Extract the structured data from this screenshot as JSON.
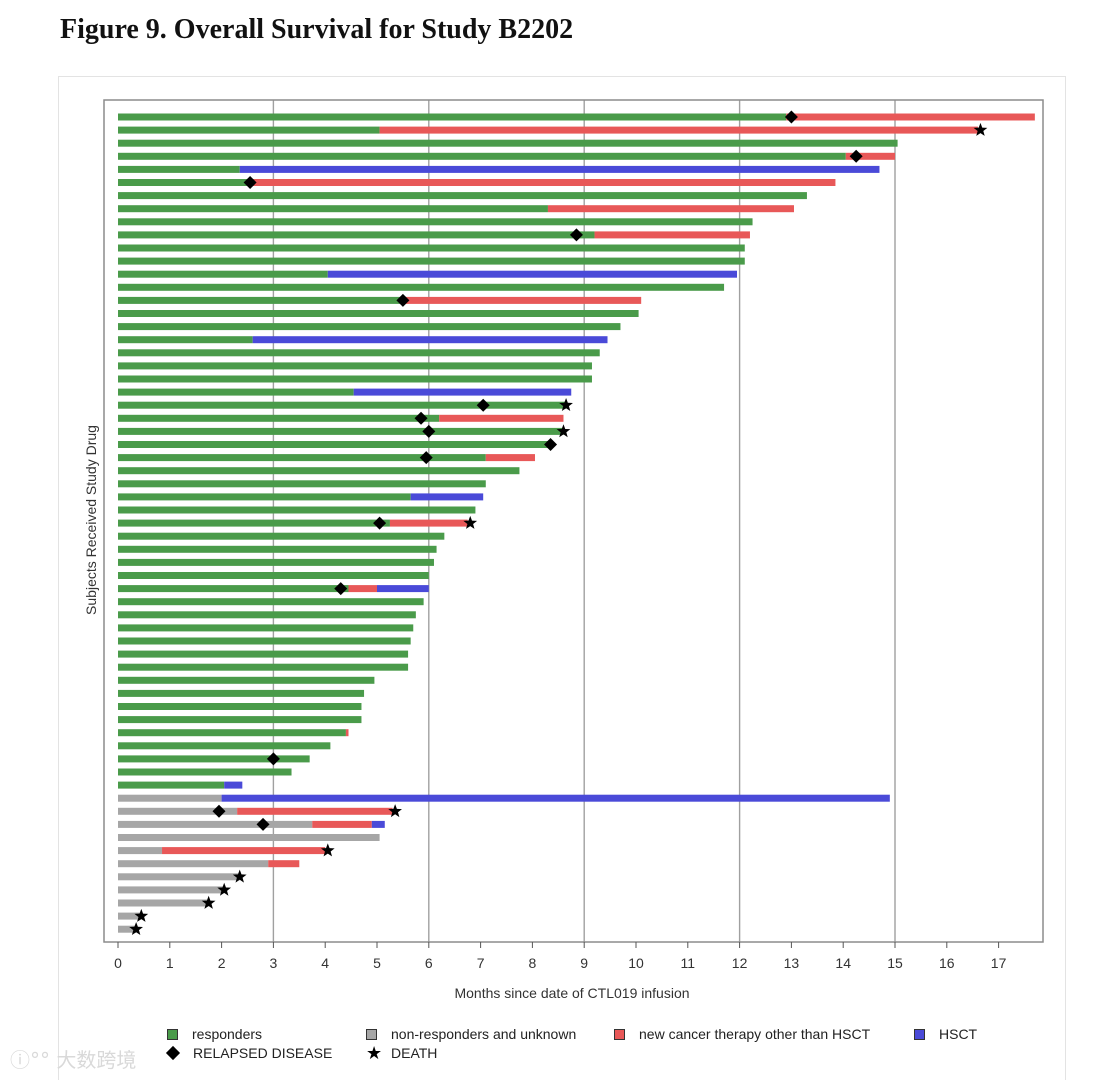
{
  "figure_title": "Figure 9. Overall Survival for Study B2202",
  "watermark": "ⓘ°° 大数跨境",
  "colors": {
    "responders": "#4a9b4a",
    "nonresponders": "#a6a6a6",
    "newtherapy": "#e85858",
    "hsct": "#4a4ad8",
    "gridline": "#a0a0a0",
    "frame": "#8c8c8c"
  },
  "chart_data": {
    "type": "bar",
    "orientation": "horizontal",
    "title": "Figure 9. Overall Survival for Study B2202",
    "xlabel": "Months since date of CTL019 infusion",
    "ylabel": "Subjects Received Study Drug",
    "xlim": [
      0,
      17.9
    ],
    "xticks": [
      0,
      1,
      2,
      3,
      4,
      5,
      6,
      7,
      8,
      9,
      10,
      11,
      12,
      13,
      14,
      15,
      16,
      17
    ],
    "vertical_reference_lines": [
      3,
      6,
      9,
      12,
      15
    ],
    "legend": {
      "placement": "bottom",
      "items": [
        {
          "label": "responders",
          "marker": "square",
          "key": "responders"
        },
        {
          "label": "non-responders and unknown",
          "marker": "square",
          "key": "nonresponders"
        },
        {
          "label": "new cancer therapy other than HSCT",
          "marker": "square",
          "key": "newtherapy"
        },
        {
          "label": "HSCT",
          "marker": "square",
          "key": "hsct"
        },
        {
          "label": "RELAPSED DISEASE",
          "marker": "diamond"
        },
        {
          "label": "DEATH",
          "marker": "star"
        }
      ]
    },
    "subjects": [
      {
        "segments": [
          [
            "responders",
            0,
            12.9
          ],
          [
            "newtherapy",
            12.9,
            17.7
          ]
        ],
        "relapse": 13.0
      },
      {
        "segments": [
          [
            "responders",
            0,
            5.05
          ],
          [
            "newtherapy",
            5.05,
            16.6
          ]
        ],
        "death": 16.65
      },
      {
        "segments": [
          [
            "responders",
            0,
            15.05
          ]
        ]
      },
      {
        "segments": [
          [
            "responders",
            0,
            14.05
          ],
          [
            "newtherapy",
            14.05,
            15.0
          ]
        ],
        "relapse": 14.25
      },
      {
        "segments": [
          [
            "responders",
            0,
            2.35
          ],
          [
            "hsct",
            2.35,
            14.7
          ]
        ]
      },
      {
        "segments": [
          [
            "responders",
            0,
            2.55
          ],
          [
            "newtherapy",
            2.55,
            13.85
          ]
        ],
        "relapse": 2.55
      },
      {
        "segments": [
          [
            "responders",
            0,
            13.3
          ]
        ]
      },
      {
        "segments": [
          [
            "responders",
            0,
            8.3
          ],
          [
            "newtherapy",
            8.3,
            13.05
          ]
        ]
      },
      {
        "segments": [
          [
            "responders",
            0,
            12.25
          ]
        ]
      },
      {
        "segments": [
          [
            "responders",
            0,
            9.2
          ],
          [
            "newtherapy",
            9.2,
            12.2
          ]
        ],
        "relapse": 8.85
      },
      {
        "segments": [
          [
            "responders",
            0,
            12.1
          ]
        ]
      },
      {
        "segments": [
          [
            "responders",
            0,
            12.1
          ]
        ]
      },
      {
        "segments": [
          [
            "responders",
            0,
            4.05
          ],
          [
            "hsct",
            4.05,
            11.95
          ]
        ]
      },
      {
        "segments": [
          [
            "responders",
            0,
            11.7
          ]
        ]
      },
      {
        "segments": [
          [
            "responders",
            0,
            5.5
          ],
          [
            "newtherapy",
            5.5,
            10.1
          ]
        ],
        "relapse": 5.5
      },
      {
        "segments": [
          [
            "responders",
            0,
            10.05
          ]
        ]
      },
      {
        "segments": [
          [
            "responders",
            0,
            9.7
          ]
        ]
      },
      {
        "segments": [
          [
            "responders",
            0,
            2.6
          ],
          [
            "hsct",
            2.6,
            9.45
          ]
        ]
      },
      {
        "segments": [
          [
            "responders",
            0,
            9.3
          ]
        ]
      },
      {
        "segments": [
          [
            "responders",
            0,
            9.15
          ]
        ]
      },
      {
        "segments": [
          [
            "responders",
            0,
            9.15
          ]
        ]
      },
      {
        "segments": [
          [
            "responders",
            0,
            4.55
          ],
          [
            "hsct",
            4.55,
            8.75
          ]
        ]
      },
      {
        "segments": [
          [
            "responders",
            0,
            8.65
          ]
        ],
        "relapse": 7.05,
        "death": 8.65
      },
      {
        "segments": [
          [
            "responders",
            0,
            6.2
          ],
          [
            "newtherapy",
            6.2,
            8.6
          ]
        ],
        "relapse": 5.85
      },
      {
        "segments": [
          [
            "responders",
            0,
            8.6
          ]
        ],
        "relapse": 6.0,
        "death": 8.6
      },
      {
        "segments": [
          [
            "responders",
            0,
            8.35
          ]
        ],
        "relapse": 8.35
      },
      {
        "segments": [
          [
            "responders",
            0,
            7.1
          ],
          [
            "newtherapy",
            7.1,
            8.05
          ]
        ],
        "relapse": 5.95
      },
      {
        "segments": [
          [
            "responders",
            0,
            7.75
          ]
        ]
      },
      {
        "segments": [
          [
            "responders",
            0,
            7.1
          ]
        ]
      },
      {
        "segments": [
          [
            "responders",
            0,
            5.65
          ],
          [
            "hsct",
            5.65,
            7.05
          ]
        ]
      },
      {
        "segments": [
          [
            "responders",
            0,
            6.9
          ]
        ]
      },
      {
        "segments": [
          [
            "responders",
            0,
            5.25
          ],
          [
            "newtherapy",
            5.25,
            6.75
          ]
        ],
        "relapse": 5.05,
        "death": 6.8
      },
      {
        "segments": [
          [
            "responders",
            0,
            6.3
          ]
        ]
      },
      {
        "segments": [
          [
            "responders",
            0,
            6.15
          ]
        ]
      },
      {
        "segments": [
          [
            "responders",
            0,
            6.1
          ]
        ]
      },
      {
        "segments": [
          [
            "responders",
            0,
            6.0
          ]
        ]
      },
      {
        "segments": [
          [
            "responders",
            0,
            4.45
          ],
          [
            "newtherapy",
            4.45,
            5.0
          ],
          [
            "hsct",
            5.0,
            6.0
          ]
        ],
        "relapse": 4.3
      },
      {
        "segments": [
          [
            "responders",
            0,
            5.9
          ]
        ]
      },
      {
        "segments": [
          [
            "responders",
            0,
            5.75
          ]
        ]
      },
      {
        "segments": [
          [
            "responders",
            0,
            5.7
          ]
        ]
      },
      {
        "segments": [
          [
            "responders",
            0,
            5.65
          ]
        ]
      },
      {
        "segments": [
          [
            "responders",
            0,
            5.6
          ]
        ]
      },
      {
        "segments": [
          [
            "responders",
            0,
            5.6
          ]
        ]
      },
      {
        "segments": [
          [
            "responders",
            0,
            4.95
          ]
        ]
      },
      {
        "segments": [
          [
            "responders",
            0,
            4.75
          ]
        ]
      },
      {
        "segments": [
          [
            "responders",
            0,
            4.7
          ]
        ]
      },
      {
        "segments": [
          [
            "responders",
            0,
            4.7
          ]
        ]
      },
      {
        "segments": [
          [
            "responders",
            0,
            4.4
          ],
          [
            "newtherapy",
            4.4,
            4.45
          ]
        ]
      },
      {
        "segments": [
          [
            "responders",
            0,
            4.1
          ]
        ]
      },
      {
        "segments": [
          [
            "responders",
            0,
            3.7
          ]
        ],
        "relapse": 3.0
      },
      {
        "segments": [
          [
            "responders",
            0,
            3.35
          ]
        ]
      },
      {
        "segments": [
          [
            "responders",
            0,
            2.05
          ],
          [
            "hsct",
            2.05,
            2.4
          ]
        ]
      },
      {
        "segments": [
          [
            "nonresponders",
            0,
            2.0
          ],
          [
            "hsct",
            2.0,
            14.9
          ]
        ]
      },
      {
        "segments": [
          [
            "nonresponders",
            0,
            2.3
          ],
          [
            "newtherapy",
            2.3,
            5.3
          ]
        ],
        "relapse": 1.95,
        "death": 5.35
      },
      {
        "segments": [
          [
            "nonresponders",
            0,
            3.75
          ],
          [
            "newtherapy",
            3.75,
            4.9
          ],
          [
            "hsct",
            4.9,
            5.15
          ]
        ],
        "relapse": 2.8
      },
      {
        "segments": [
          [
            "nonresponders",
            0,
            5.05
          ]
        ]
      },
      {
        "segments": [
          [
            "nonresponders",
            0,
            0.85
          ],
          [
            "newtherapy",
            0.85,
            4.0
          ]
        ],
        "death": 4.05
      },
      {
        "segments": [
          [
            "nonresponders",
            0,
            2.9
          ],
          [
            "newtherapy",
            2.9,
            3.5
          ]
        ]
      },
      {
        "segments": [
          [
            "nonresponders",
            0,
            2.35
          ]
        ],
        "death": 2.35
      },
      {
        "segments": [
          [
            "nonresponders",
            0,
            2.05
          ]
        ],
        "death": 2.05
      },
      {
        "segments": [
          [
            "nonresponders",
            0,
            1.75
          ]
        ],
        "death": 1.75
      },
      {
        "segments": [
          [
            "nonresponders",
            0,
            0.45
          ]
        ],
        "death": 0.45
      },
      {
        "segments": [
          [
            "nonresponders",
            0,
            0.35
          ]
        ],
        "death": 0.35
      }
    ]
  }
}
